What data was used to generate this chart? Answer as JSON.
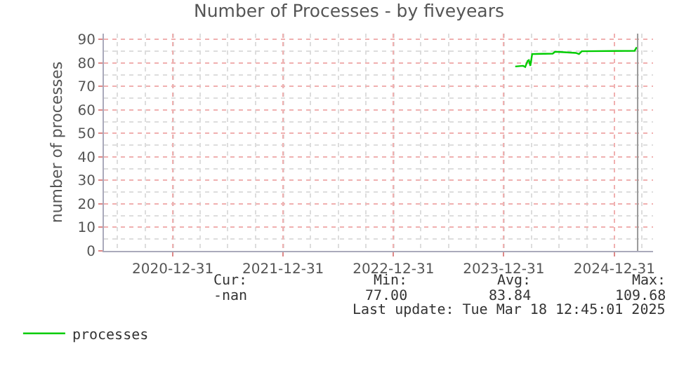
{
  "chart_data": {
    "type": "line",
    "title": "Number of Processes - by fiveyears",
    "ylabel": "number of processes",
    "series": [
      {
        "name": "processes",
        "color": "#00cc00",
        "x": [
          "2024-02-07",
          "2024-03-04",
          "2024-03-11",
          "2024-03-19",
          "2024-03-23",
          "2024-03-28",
          "2024-04-03",
          "2024-06-10",
          "2024-06-18",
          "2024-08-25",
          "2024-09-05",
          "2024-09-14",
          "2025-03-08",
          "2025-03-15"
        ],
        "values": [
          78.5,
          78.8,
          78.3,
          80.9,
          81.2,
          78.8,
          83.8,
          84,
          84.8,
          84.3,
          83.8,
          85,
          85.2,
          86.7
        ]
      }
    ],
    "xlim": [
      "2020-05-17",
      "2025-05-08"
    ],
    "xticks": [
      {
        "value": "2020-12-31",
        "label": "2020-12-31"
      },
      {
        "value": "2021-12-31",
        "label": "2021-12-31"
      },
      {
        "value": "2022-12-31",
        "label": "2022-12-31"
      },
      {
        "value": "2023-12-31",
        "label": "2023-12-31"
      },
      {
        "value": "2024-12-31",
        "label": "2024-12-31"
      }
    ],
    "ylim": [
      0,
      92.5
    ],
    "yticks": [
      0,
      10,
      20,
      30,
      40,
      50,
      60,
      70,
      80,
      90
    ],
    "ref_lines": [
      {
        "axis": "x",
        "value": "2025-03-18",
        "label": null,
        "color": "#999999"
      }
    ],
    "grid": true,
    "legend": "bottom left",
    "marker": "none",
    "line_style": "solid",
    "annotations": [
      "Cur:",
      "Min:",
      "Avg:",
      "Max:",
      "-nan",
      "77.00",
      "83.84",
      "109.68",
      "Last update: Tue Mar 18 12:45:01 2025"
    ]
  }
}
